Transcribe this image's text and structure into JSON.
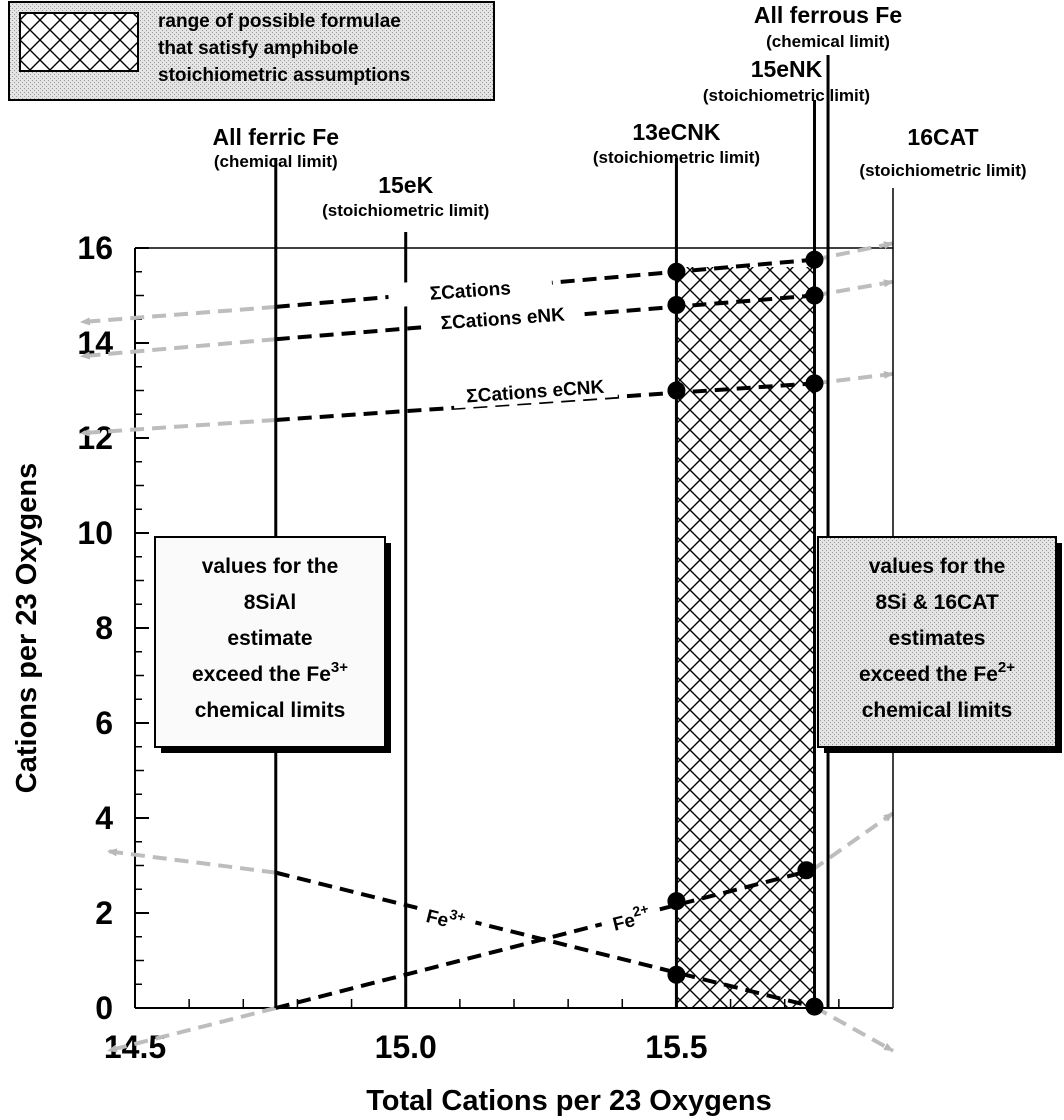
{
  "chart_data": {
    "type": "line",
    "xlabel": "Total Cations per 23 Oxygens",
    "ylabel": "Cations per 23 Oxygens",
    "xlim": [
      14.5,
      15.9
    ],
    "ylim": [
      0,
      16
    ],
    "x_ticks": [
      14.5,
      15.0,
      15.5
    ],
    "x_tick_labels": [
      "14.5",
      "15.0",
      "15.5"
    ],
    "y_ticks": [
      0,
      2,
      4,
      6,
      8,
      10,
      12,
      14,
      16
    ],
    "y_tick_labels": [
      "0",
      "2",
      "4",
      "6",
      "8",
      "10",
      "12",
      "14",
      "16"
    ],
    "limits": [
      {
        "name": "All ferric Fe",
        "kind": "(chemical limit)",
        "x": 14.76
      },
      {
        "name": "15eK",
        "kind": "(stoichiometric limit)",
        "x": 15.0
      },
      {
        "name": "13eCNK",
        "kind": "(stoichiometric limit)",
        "x": 15.5
      },
      {
        "name": "15eNK",
        "kind": "(stoichiometric limit)",
        "x": 15.755
      },
      {
        "name": "All ferrous Fe",
        "kind": "(chemical limit)",
        "x": 15.78
      },
      {
        "name": "16CAT",
        "kind": "(stoichiometric limit)",
        "x": 15.9
      }
    ],
    "shaded_range": {
      "x": [
        15.5,
        15.755
      ],
      "label": [
        "range of possible formulae",
        "that satisfy amphibole",
        "stoichiometric assumptions"
      ]
    },
    "series": [
      {
        "name": "ΣCations",
        "label_sign": "Σ",
        "label_text": "Cations",
        "label_at": [
          15.12,
          14.97
        ],
        "label_angle": -4,
        "dashed": [
          [
            14.76,
            14.76
          ],
          [
            15.755,
            15.755
          ]
        ],
        "extension": [
          [
            14.4,
            14.44
          ],
          [
            15.9,
            16.1
          ]
        ],
        "points": [
          [
            15.5,
            15.5
          ],
          [
            15.755,
            15.755
          ]
        ]
      },
      {
        "name": "ΣCations eNK",
        "label_sign": "Σ",
        "label_text": "Cations eNK",
        "label_at": [
          15.18,
          14.38
        ],
        "label_angle": -4,
        "dashed": [
          [
            14.76,
            14.08
          ],
          [
            15.755,
            15.0
          ]
        ],
        "extension": [
          [
            14.4,
            13.72
          ],
          [
            15.9,
            15.29
          ]
        ],
        "points": [
          [
            15.5,
            14.8
          ],
          [
            15.755,
            15.0
          ]
        ]
      },
      {
        "name": "ΣCations eCNK",
        "label_sign": "Σ",
        "label_text": "Cations eCNK",
        "label_at": [
          15.24,
          12.85
        ],
        "label_angle": -4,
        "dashed": [
          [
            14.76,
            12.38
          ],
          [
            15.755,
            13.15
          ]
        ],
        "extension": [
          [
            14.4,
            12.1
          ],
          [
            15.9,
            13.35
          ]
        ],
        "points": [
          [
            15.5,
            13.0
          ],
          [
            15.755,
            13.15
          ]
        ]
      },
      {
        "name": "Fe3+",
        "label_base": "Fe",
        "label_sup": "3+",
        "label_at": [
          15.07,
          1.72
        ],
        "label_angle": 14,
        "dashed": [
          [
            14.76,
            2.85
          ],
          [
            15.755,
            0.02
          ]
        ],
        "extension": [
          [
            14.45,
            3.3
          ],
          [
            15.9,
            -0.9
          ]
        ],
        "points": [
          [
            15.5,
            0.7
          ],
          [
            15.755,
            0.03
          ]
        ]
      },
      {
        "name": "Fe2+",
        "label_base": "Fe",
        "label_sup": "2+",
        "label_at": [
          15.42,
          1.72
        ],
        "label_angle": -14,
        "dashed": [
          [
            14.76,
            0.0
          ],
          [
            15.75,
            2.9
          ]
        ],
        "extension": [
          [
            14.45,
            -0.9
          ],
          [
            15.9,
            4.1
          ]
        ],
        "points": [
          [
            15.5,
            2.25
          ],
          [
            15.74,
            2.9
          ]
        ]
      }
    ],
    "annotations": [
      {
        "anchor": "left",
        "lines": [
          [
            "values for the"
          ],
          [
            "8SiAl"
          ],
          [
            "estimate"
          ],
          [
            "exceed the Fe",
            "3+"
          ],
          [
            "chemical limits"
          ]
        ]
      },
      {
        "anchor": "right",
        "lines": [
          [
            "values for the"
          ],
          [
            "8Si & 16CAT"
          ],
          [
            "estimates"
          ],
          [
            "exceed the Fe",
            "2+"
          ],
          [
            "chemical limits"
          ]
        ]
      }
    ],
    "grid": false,
    "legend": "top-left"
  }
}
